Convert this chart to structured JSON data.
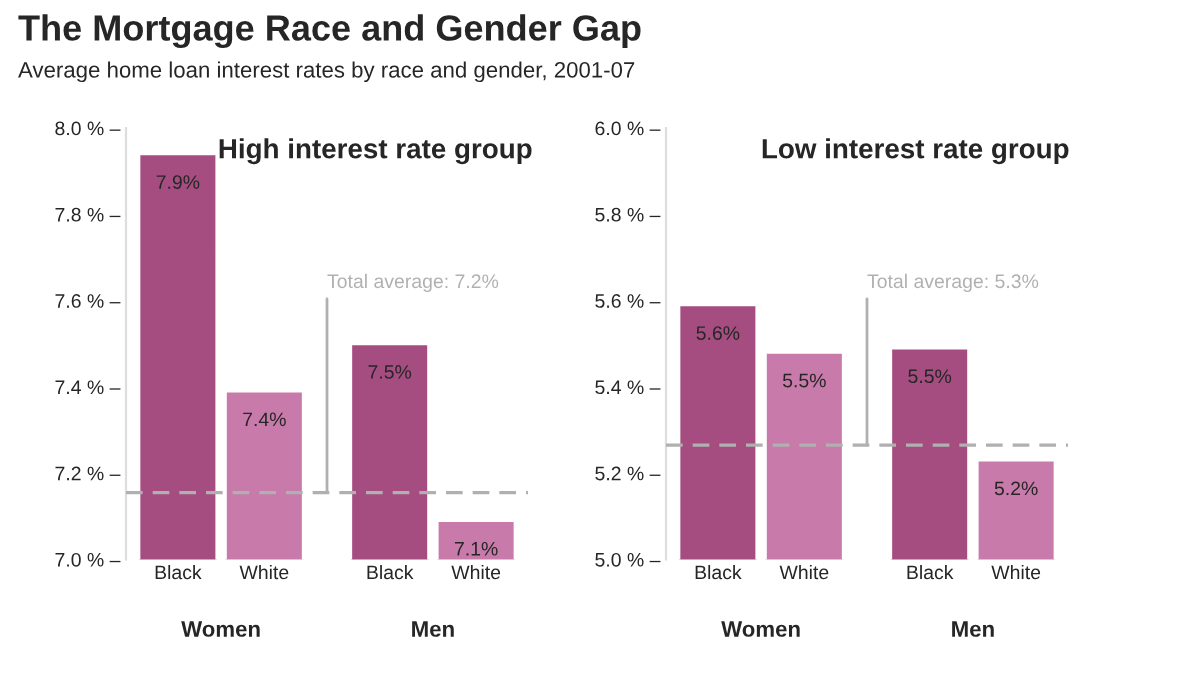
{
  "chart_data": [
    {
      "type": "bar",
      "title": "The Mortgage Race and Gender Gap",
      "subtitle": "Average home loan interest rates by race and gender, 2001-07",
      "annotations": [
        "High interest rate group",
        "Women",
        "Men"
      ],
      "categories": [
        "Black",
        "White",
        "Black",
        "White"
      ],
      "values": [
        7.94,
        7.39,
        7.5,
        7.09
      ],
      "colors": [
        "#a54d80",
        "#c87aab",
        "#a54d80",
        "#c87aab"
      ],
      "value_labels": [
        "7.9%",
        "7.4%",
        "7.5%",
        "7.1%"
      ],
      "ylim": [
        7.0,
        8.0
      ],
      "yticks": [
        {
          "value": 7.0,
          "label": "7.0 % –"
        },
        {
          "value": 7.2,
          "label": "7.2 % –"
        },
        {
          "value": 7.4,
          "label": "7.4 % –"
        },
        {
          "value": 7.6,
          "label": "7.6 % –"
        },
        {
          "value": 7.8,
          "label": "7.8 % –"
        },
        {
          "value": 8.0,
          "label": "8.0 % –"
        }
      ],
      "ref_lines": [
        {
          "axis": "y",
          "value": 7.155,
          "label": "Total average: 7.2%",
          "color": "#b0b0b0",
          "line_style": "dashed"
        }
      ],
      "grid": false,
      "legend": false
    },
    {
      "type": "bar",
      "annotations": [
        "Low interest rate group",
        "Women",
        "Men"
      ],
      "categories": [
        "Black",
        "White",
        "Black",
        "White"
      ],
      "values": [
        5.59,
        5.48,
        5.49,
        5.23
      ],
      "colors": [
        "#a54d80",
        "#c87aab",
        "#a54d80",
        "#c87aab"
      ],
      "value_labels": [
        "5.6%",
        "5.5%",
        "5.5%",
        "5.2%"
      ],
      "ylim": [
        5.0,
        6.0
      ],
      "yticks": [
        {
          "value": 5.0,
          "label": "5.0 % –"
        },
        {
          "value": 5.2,
          "label": "5.2 % –"
        },
        {
          "value": 5.4,
          "label": "5.4 % –"
        },
        {
          "value": 5.6,
          "label": "5.6 % –"
        },
        {
          "value": 5.8,
          "label": "5.8 % –"
        },
        {
          "value": 6.0,
          "label": "6.0 % –"
        }
      ],
      "ref_lines": [
        {
          "axis": "y",
          "value": 5.265,
          "label": "Total average: 5.3%",
          "color": "#b0b0b0",
          "line_style": "dashed"
        }
      ],
      "grid": false,
      "legend": false
    }
  ]
}
